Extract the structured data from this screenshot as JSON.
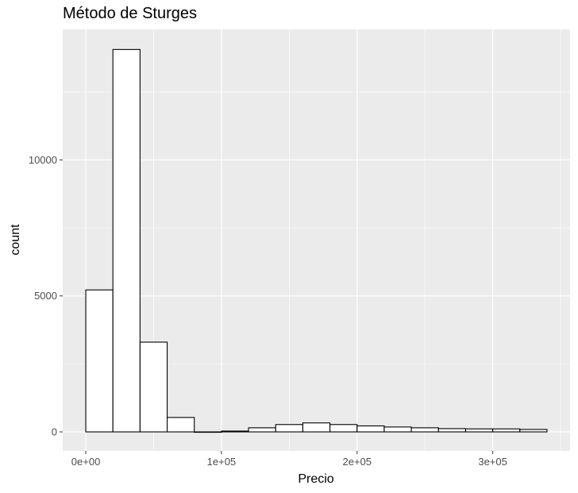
{
  "chart_data": {
    "type": "bar",
    "title": "Método de Sturges",
    "xlabel": "Precio",
    "ylabel": "count",
    "bin_width": 20000,
    "bin_starts": [
      0,
      20000,
      40000,
      60000,
      80000,
      100000,
      120000,
      140000,
      160000,
      180000,
      200000,
      220000,
      240000,
      260000,
      280000,
      300000,
      320000
    ],
    "values": [
      5220,
      14060,
      3300,
      530,
      0,
      30,
      150,
      270,
      330,
      270,
      220,
      180,
      150,
      120,
      110,
      110,
      90
    ],
    "xlim": [
      -17000,
      357000
    ],
    "ylim": [
      -700,
      14800
    ],
    "xticks": [
      0,
      100000,
      200000,
      300000
    ],
    "xtick_labels": [
      "0e+00",
      "1e+05",
      "2e+05",
      "3e+05"
    ],
    "yticks": [
      0,
      5000,
      10000
    ],
    "ytick_labels": [
      "0",
      "5000",
      "10000"
    ],
    "grid": true,
    "colors": {
      "panel": "#ebebeb",
      "grid_major": "#ffffff",
      "bar_fill": "#ffffff",
      "bar_stroke": "#000000"
    }
  }
}
